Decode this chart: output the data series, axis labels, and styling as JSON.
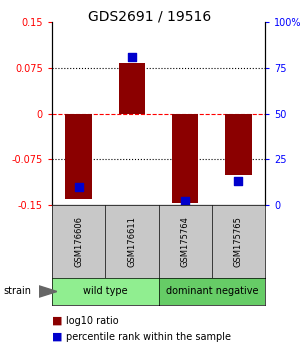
{
  "title": "GDS2691 / 19516",
  "samples": [
    "GSM176606",
    "GSM176611",
    "GSM175764",
    "GSM175765"
  ],
  "log10_ratio": [
    -0.14,
    0.083,
    -0.147,
    -0.1
  ],
  "percentile_rank": [
    10,
    81,
    2,
    13
  ],
  "groups": [
    {
      "label": "wild type",
      "samples": [
        0,
        1
      ],
      "color": "#90EE90"
    },
    {
      "label": "dominant negative",
      "samples": [
        2,
        3
      ],
      "color": "#66CC66"
    }
  ],
  "ylim_left": [
    -0.15,
    0.15
  ],
  "ylim_right": [
    0,
    100
  ],
  "yticks_left": [
    -0.15,
    -0.075,
    0,
    0.075,
    0.15
  ],
  "yticks_right": [
    0,
    25,
    50,
    75,
    100
  ],
  "ytick_labels_left": [
    "-0.15",
    "-0.075",
    "0",
    "0.075",
    "0.15"
  ],
  "ytick_labels_right": [
    "0",
    "25",
    "50",
    "75",
    "100%"
  ],
  "hlines_dotted": [
    -0.075,
    0.075
  ],
  "hline_dashed": 0,
  "bar_color": "#8B0000",
  "dot_color": "#0000CC",
  "bar_width": 0.5,
  "dot_size": 30,
  "strain_label": "strain",
  "legend_log10": "log10 ratio",
  "legend_pct": "percentile rank within the sample",
  "background_color": "#FFFFFF"
}
